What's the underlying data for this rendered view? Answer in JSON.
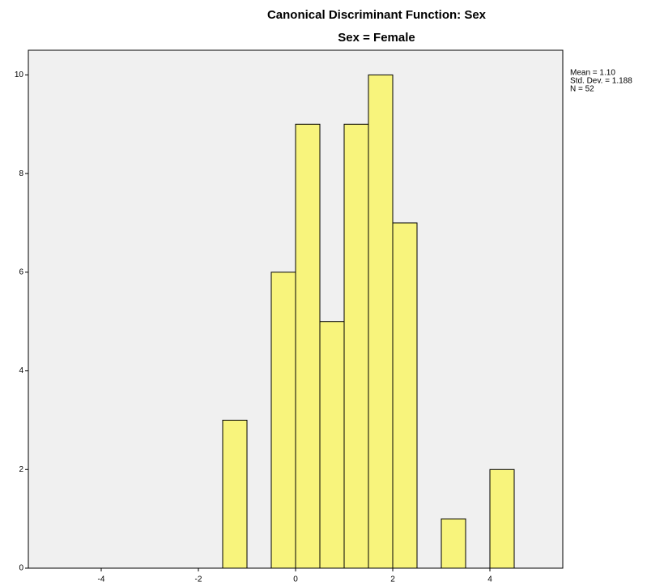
{
  "chart_data": {
    "type": "histogram",
    "title": "Canonical Discriminant Function: Sex",
    "subtitle": "Sex = Female",
    "bins": [
      -1.5,
      -1.0,
      -0.5,
      0,
      0.5,
      1.0,
      1.5,
      2.0,
      2.5,
      3.0,
      3.5,
      4.0,
      4.5
    ],
    "values": [
      3,
      0,
      6,
      9,
      5,
      9,
      10,
      7,
      0,
      1,
      0,
      2
    ],
    "color": "#f8f47c",
    "xlim": [
      -5.5,
      5.5
    ],
    "xticks": [
      -4,
      -2,
      0,
      2,
      4
    ],
    "ylim": [
      0,
      10.5
    ],
    "yticks": [
      0,
      2,
      4,
      6,
      8,
      10
    ],
    "stats": [
      "Mean = 1.10",
      "Std. Dev. = 1.188",
      "N = 52"
    ]
  }
}
